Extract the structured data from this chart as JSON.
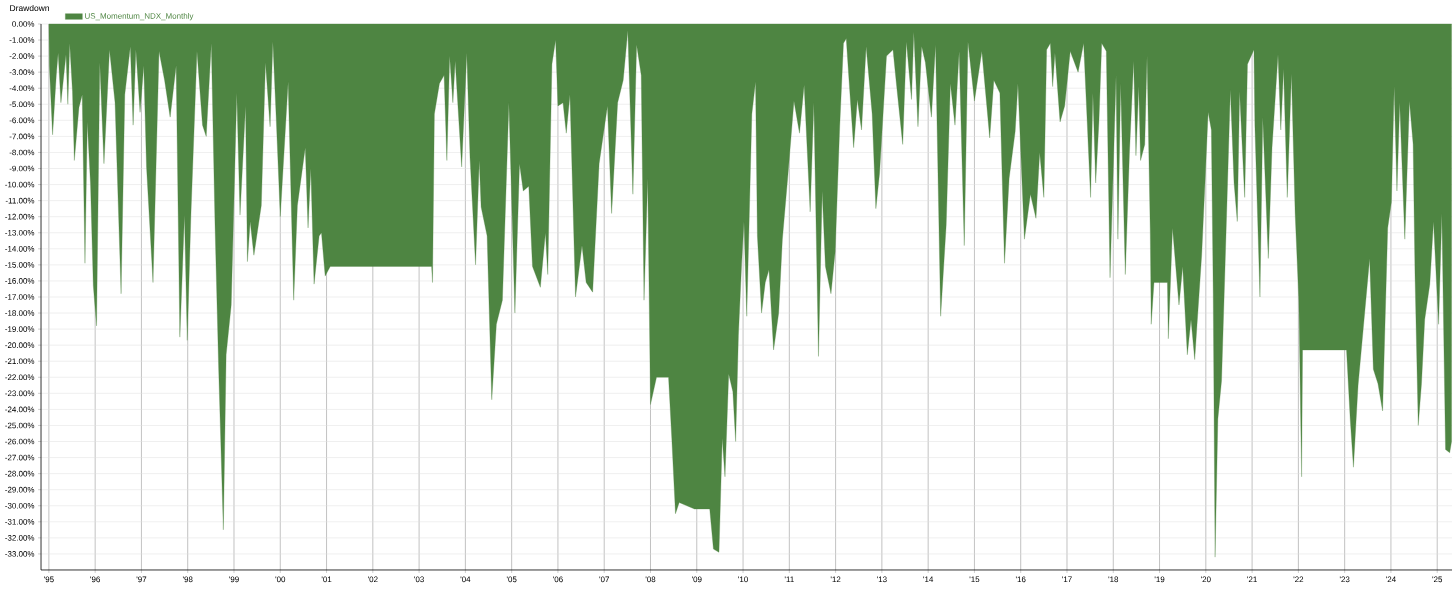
{
  "chart_data": {
    "type": "area",
    "title": "Drawdown",
    "legend": "top left",
    "grid": true,
    "xlim": [
      1994.83,
      2025.32
    ],
    "ylim": [
      -34,
      0
    ],
    "xticks": [
      {
        "value": 1995,
        "label": "'95"
      },
      {
        "value": 1996,
        "label": "'96"
      },
      {
        "value": 1997,
        "label": "'97"
      },
      {
        "value": 1998,
        "label": "'98"
      },
      {
        "value": 1999,
        "label": "'99"
      },
      {
        "value": 2000,
        "label": "'00"
      },
      {
        "value": 2001,
        "label": "'01"
      },
      {
        "value": 2002,
        "label": "'02"
      },
      {
        "value": 2003,
        "label": "'03"
      },
      {
        "value": 2004,
        "label": "'04"
      },
      {
        "value": 2005,
        "label": "'05"
      },
      {
        "value": 2006,
        "label": "'06"
      },
      {
        "value": 2007,
        "label": "'07"
      },
      {
        "value": 2008,
        "label": "'08"
      },
      {
        "value": 2009,
        "label": "'09"
      },
      {
        "value": 2010,
        "label": "'10"
      },
      {
        "value": 2011,
        "label": "'11"
      },
      {
        "value": 2012,
        "label": "'12"
      },
      {
        "value": 2013,
        "label": "'13"
      },
      {
        "value": 2014,
        "label": "'14"
      },
      {
        "value": 2015,
        "label": "'15"
      },
      {
        "value": 2016,
        "label": "'16"
      },
      {
        "value": 2017,
        "label": "'17"
      },
      {
        "value": 2018,
        "label": "'18"
      },
      {
        "value": 2019,
        "label": "'19"
      },
      {
        "value": 2020,
        "label": "'20"
      },
      {
        "value": 2021,
        "label": "'21"
      },
      {
        "value": 2022,
        "label": "'22"
      },
      {
        "value": 2023,
        "label": "'23"
      },
      {
        "value": 2024,
        "label": "'24"
      },
      {
        "value": 2025,
        "label": "'25"
      }
    ],
    "yticks": [
      {
        "value": 0,
        "label": "0.00%"
      },
      {
        "value": -1,
        "label": "-1.00%"
      },
      {
        "value": -2,
        "label": "-2.00%"
      },
      {
        "value": -3,
        "label": "-3.00%"
      },
      {
        "value": -4,
        "label": "-4.00%"
      },
      {
        "value": -5,
        "label": "-5.00%"
      },
      {
        "value": -6,
        "label": "-6.00%"
      },
      {
        "value": -7,
        "label": "-7.00%"
      },
      {
        "value": -8,
        "label": "-8.00%"
      },
      {
        "value": -9,
        "label": "-9.00%"
      },
      {
        "value": -10,
        "label": "-10.00%"
      },
      {
        "value": -11,
        "label": "-11.00%"
      },
      {
        "value": -12,
        "label": "-12.00%"
      },
      {
        "value": -13,
        "label": "-13.00%"
      },
      {
        "value": -14,
        "label": "-14.00%"
      },
      {
        "value": -15,
        "label": "-15.00%"
      },
      {
        "value": -16,
        "label": "-16.00%"
      },
      {
        "value": -17,
        "label": "-17.00%"
      },
      {
        "value": -18,
        "label": "-18.00%"
      },
      {
        "value": -19,
        "label": "-19.00%"
      },
      {
        "value": -20,
        "label": "-20.00%"
      },
      {
        "value": -21,
        "label": "-21.00%"
      },
      {
        "value": -22,
        "label": "-22.00%"
      },
      {
        "value": -23,
        "label": "-23.00%"
      },
      {
        "value": -24,
        "label": "-24.00%"
      },
      {
        "value": -25,
        "label": "-25.00%"
      },
      {
        "value": -26,
        "label": "-26.00%"
      },
      {
        "value": -27,
        "label": "-27.00%"
      },
      {
        "value": -28,
        "label": "-28.00%"
      },
      {
        "value": -29,
        "label": "-29.00%"
      },
      {
        "value": -30,
        "label": "-30.00%"
      },
      {
        "value": -31,
        "label": "-31.00%"
      },
      {
        "value": -32,
        "label": "-32.00%"
      },
      {
        "value": -33,
        "label": "-33.00%"
      }
    ],
    "series": [
      {
        "name": "US_Momentum_NDX_Monthly",
        "color": "#4e8542",
        "x": [
          1995.0,
          1995.01,
          1995.08,
          1995.16,
          1995.2,
          1995.26,
          1995.37,
          1995.41,
          1995.45,
          1995.51,
          1995.55,
          1995.65,
          1995.72,
          1995.78,
          1995.83,
          1995.9,
          1995.96,
          1996.03,
          1996.1,
          1996.19,
          1996.31,
          1996.43,
          1996.56,
          1996.64,
          1996.76,
          1996.82,
          1996.88,
          1996.97,
          1997.05,
          1997.11,
          1997.25,
          1997.38,
          1997.5,
          1997.62,
          1997.75,
          1997.83,
          1997.93,
          1997.99,
          1998.07,
          1998.2,
          1998.32,
          1998.4,
          1998.51,
          1998.59,
          1998.67,
          1998.77,
          1998.83,
          1998.94,
          1999.06,
          1999.13,
          1999.25,
          1999.29,
          1999.35,
          1999.43,
          1999.59,
          1999.68,
          1999.78,
          1999.84,
          1999.91,
          2000.0,
          2000.17,
          2000.29,
          2000.37,
          2000.54,
          2000.6,
          2000.66,
          2000.73,
          2000.84,
          2000.89,
          2000.97,
          2001.08,
          2003.27,
          2003.29,
          2003.33,
          2003.44,
          2003.54,
          2003.6,
          2003.66,
          2003.73,
          2003.78,
          2003.92,
          2004.03,
          2004.1,
          2004.22,
          2004.3,
          2004.34,
          2004.47,
          2004.57,
          2004.67,
          2004.8,
          2004.94,
          2005.07,
          2005.17,
          2005.25,
          2005.37,
          2005.45,
          2005.62,
          2005.73,
          2005.78,
          2005.87,
          2005.95,
          2006.0,
          2006.11,
          2006.18,
          2006.26,
          2006.38,
          2006.52,
          2006.61,
          2006.75,
          2006.89,
          2007.07,
          2007.16,
          2007.29,
          2007.41,
          2007.51,
          2007.62,
          2007.7,
          2007.8,
          2007.86,
          2007.94,
          2008.0,
          2008.13,
          2008.39,
          2008.46,
          2008.54,
          2008.62,
          2008.95,
          2009.28,
          2009.36,
          2009.48,
          2009.55,
          2009.61,
          2009.69,
          2009.78,
          2009.84,
          2009.9,
          2009.97,
          2010.02,
          2010.08,
          2010.19,
          2010.27,
          2010.31,
          2010.4,
          2010.48,
          2010.56,
          2010.66,
          2010.77,
          2010.85,
          2010.97,
          2011.1,
          2011.22,
          2011.32,
          2011.45,
          2011.53,
          2011.63,
          2011.71,
          2011.78,
          2011.9,
          2011.99,
          2012.09,
          2012.17,
          2012.23,
          2012.29,
          2012.39,
          2012.47,
          2012.56,
          2012.66,
          2012.79,
          2012.87,
          2012.95,
          2013.1,
          2013.24,
          2013.32,
          2013.45,
          2013.53,
          2013.64,
          2013.69,
          2013.78,
          2013.86,
          2013.94,
          2014.07,
          2014.16,
          2014.27,
          2014.39,
          2014.48,
          2014.58,
          2014.67,
          2014.78,
          2014.86,
          2015.0,
          2015.16,
          2015.33,
          2015.42,
          2015.55,
          2015.65,
          2015.75,
          2015.88,
          2015.94,
          2016.08,
          2016.21,
          2016.33,
          2016.41,
          2016.5,
          2016.56,
          2016.64,
          2016.69,
          2016.74,
          2016.85,
          2016.95,
          2017.07,
          2017.24,
          2017.36,
          2017.44,
          2017.51,
          2017.56,
          2017.62,
          2017.69,
          2017.75,
          2017.85,
          2017.93,
          2018.06,
          2018.1,
          2018.16,
          2018.26,
          2018.35,
          2018.44,
          2018.49,
          2018.55,
          2018.59,
          2018.68,
          2018.73,
          2018.8,
          2018.82,
          2018.88,
          2019.17,
          2019.19,
          2019.28,
          2019.42,
          2019.5,
          2019.6,
          2019.68,
          2019.76,
          2019.91,
          2019.99,
          2020.05,
          2020.12,
          2020.16,
          2020.2,
          2020.26,
          2020.34,
          2020.41,
          2020.53,
          2020.61,
          2020.68,
          2020.73,
          2020.84,
          2020.9,
          2021.04,
          2021.06,
          2021.17,
          2021.23,
          2021.35,
          2021.43,
          2021.56,
          2021.62,
          2021.68,
          2021.76,
          2021.85,
          2021.93,
          2022.01,
          2022.07,
          2022.09,
          2023.04,
          2023.12,
          2023.19,
          2023.29,
          2023.41,
          2023.54,
          2023.62,
          2023.72,
          2023.82,
          2023.93,
          2024.01,
          2024.07,
          2024.13,
          2024.19,
          2024.3,
          2024.4,
          2024.48,
          2024.52,
          2024.59,
          2024.66,
          2024.73,
          2024.84,
          2024.92,
          2025.03,
          2025.1,
          2025.18,
          2025.27,
          2025.31
        ],
        "values": [
          0,
          -2.6,
          -6.9,
          -3.2,
          -1.8,
          -4.9,
          -1.9,
          -5.0,
          -1.2,
          -4.2,
          -8.5,
          -5.2,
          -4.4,
          -14.9,
          -6.1,
          -10.0,
          -16.3,
          -18.8,
          -2.4,
          -8.7,
          -1.6,
          -4.9,
          -16.8,
          -4.4,
          -1.4,
          -6.3,
          -1.6,
          -5.5,
          -2.6,
          -8.9,
          -16.1,
          -1.7,
          -3.5,
          -5.8,
          -2.6,
          -19.5,
          -11.9,
          -19.7,
          -11.8,
          -1.7,
          -6.3,
          -7.0,
          -1.2,
          -12.5,
          -21.6,
          -31.5,
          -20.6,
          -17.5,
          -4.3,
          -11.9,
          -5.1,
          -14.8,
          -12.3,
          -14.4,
          -11.3,
          -2.4,
          -6.4,
          -1.1,
          -5.7,
          -12.0,
          -3.6,
          -17.2,
          -11.3,
          -7.7,
          -12.7,
          -9.0,
          -16.2,
          -13.2,
          -13.0,
          -15.7,
          -15.1,
          -15.1,
          -16.1,
          -5.6,
          -3.7,
          -3.2,
          -8.5,
          -2.0,
          -4.9,
          -2.3,
          -8.9,
          -1.8,
          -8.3,
          -15.0,
          -8.5,
          -11.4,
          -13.2,
          -23.4,
          -18.7,
          -17.2,
          -4.9,
          -18.0,
          -8.7,
          -10.4,
          -10.1,
          -15.1,
          -16.4,
          -13.0,
          -15.6,
          -2.5,
          -1.0,
          -5.1,
          -4.9,
          -6.8,
          -4.4,
          -17.0,
          -13.8,
          -16.1,
          -16.7,
          -8.7,
          -5.1,
          -11.8,
          -4.9,
          -3.5,
          -0.4,
          -10.6,
          -1.3,
          -3.2,
          -17.2,
          -9.6,
          -23.7,
          -22.0,
          -22.0,
          -25.8,
          -30.5,
          -29.8,
          -30.2,
          -30.2,
          -32.7,
          -32.9,
          -25.8,
          -28.2,
          -21.8,
          -22.9,
          -26.0,
          -19.4,
          -14.9,
          -12.3,
          -18.2,
          -5.6,
          -3.6,
          -13.2,
          -18.0,
          -16.1,
          -15.3,
          -20.3,
          -18.0,
          -13.4,
          -9.4,
          -4.8,
          -6.8,
          -3.8,
          -11.7,
          -4.9,
          -20.7,
          -10.4,
          -15.1,
          -16.8,
          -14.2,
          -6.3,
          -1.2,
          -0.9,
          -3.5,
          -7.7,
          -4.7,
          -6.6,
          -1.4,
          -5.6,
          -11.5,
          -9.3,
          -2.0,
          -1.6,
          -3.9,
          -7.5,
          -1.1,
          -4.7,
          -0.5,
          -6.4,
          -1.4,
          -2.4,
          -5.8,
          -1.3,
          -18.2,
          -12.5,
          -3.7,
          -6.3,
          -1.7,
          -13.8,
          -1.1,
          -4.8,
          -1.7,
          -7.1,
          -3.5,
          -4.3,
          -14.9,
          -9.6,
          -6.7,
          -3.7,
          -13.4,
          -10.6,
          -12.1,
          -8.0,
          -10.8,
          -1.6,
          -1.2,
          -3.9,
          -1.8,
          -6.1,
          -5.1,
          -1.7,
          -3.0,
          -1.2,
          -6.3,
          -10.8,
          -4.3,
          -9.9,
          -6.1,
          -1.2,
          -1.7,
          -15.8,
          -3.2,
          -13.4,
          -3.7,
          -15.6,
          -8.0,
          -2.3,
          -8.2,
          -3.9,
          -8.5,
          -7.5,
          -2.0,
          -13.0,
          -18.7,
          -16.1,
          -16.1,
          -19.6,
          -12.7,
          -17.5,
          -15.1,
          -20.6,
          -18.4,
          -20.9,
          -14.4,
          -9.4,
          -5.5,
          -6.6,
          -16.8,
          -33.2,
          -24.6,
          -22.2,
          -15.6,
          -4.1,
          -9.9,
          -12.3,
          -4.2,
          -10.8,
          -2.5,
          -1.6,
          -6.3,
          -17.0,
          -5.8,
          -14.6,
          -7.7,
          -1.9,
          -6.6,
          -2.8,
          -10.8,
          -3.1,
          -11.8,
          -17.2,
          -28.2,
          -20.3,
          -20.3,
          -24.6,
          -27.6,
          -22.5,
          -18.7,
          -14.6,
          -21.5,
          -22.4,
          -24.1,
          -12.7,
          -11.1,
          -3.9,
          -10.4,
          -4.9,
          -13.4,
          -4.8,
          -7.5,
          -15.6,
          -25.0,
          -22.4,
          -18.4,
          -16.2,
          -12.3,
          -18.7,
          -11.8,
          -26.5,
          -26.7,
          -26.0
        ]
      }
    ]
  }
}
